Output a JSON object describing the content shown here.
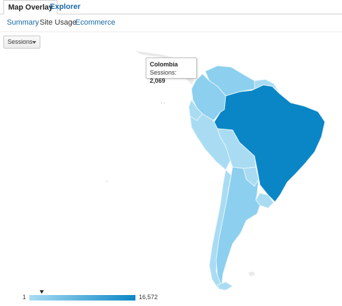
{
  "tabs": [
    {
      "label": "Map Overlay",
      "active": true
    },
    {
      "label": "Explorer",
      "active": false
    }
  ],
  "subtabs": [
    {
      "label": "Summary",
      "current": false
    },
    {
      "label": "Site Usage",
      "current": true
    },
    {
      "label": "Ecommerce",
      "current": false
    }
  ],
  "metric_select": {
    "value": "Sessions"
  },
  "tooltip": {
    "country": "Colombia",
    "metric_label": "Sessions:",
    "metric_value": "2,069"
  },
  "legend": {
    "min": "1",
    "max": "16,572",
    "marker_value": 2069
  },
  "colors": {
    "light": "#a9dcf3",
    "medium": "#8ccfee",
    "dark": "#0a86c6",
    "border": "#e8f4fa",
    "link": "#1a6aa8"
  }
}
